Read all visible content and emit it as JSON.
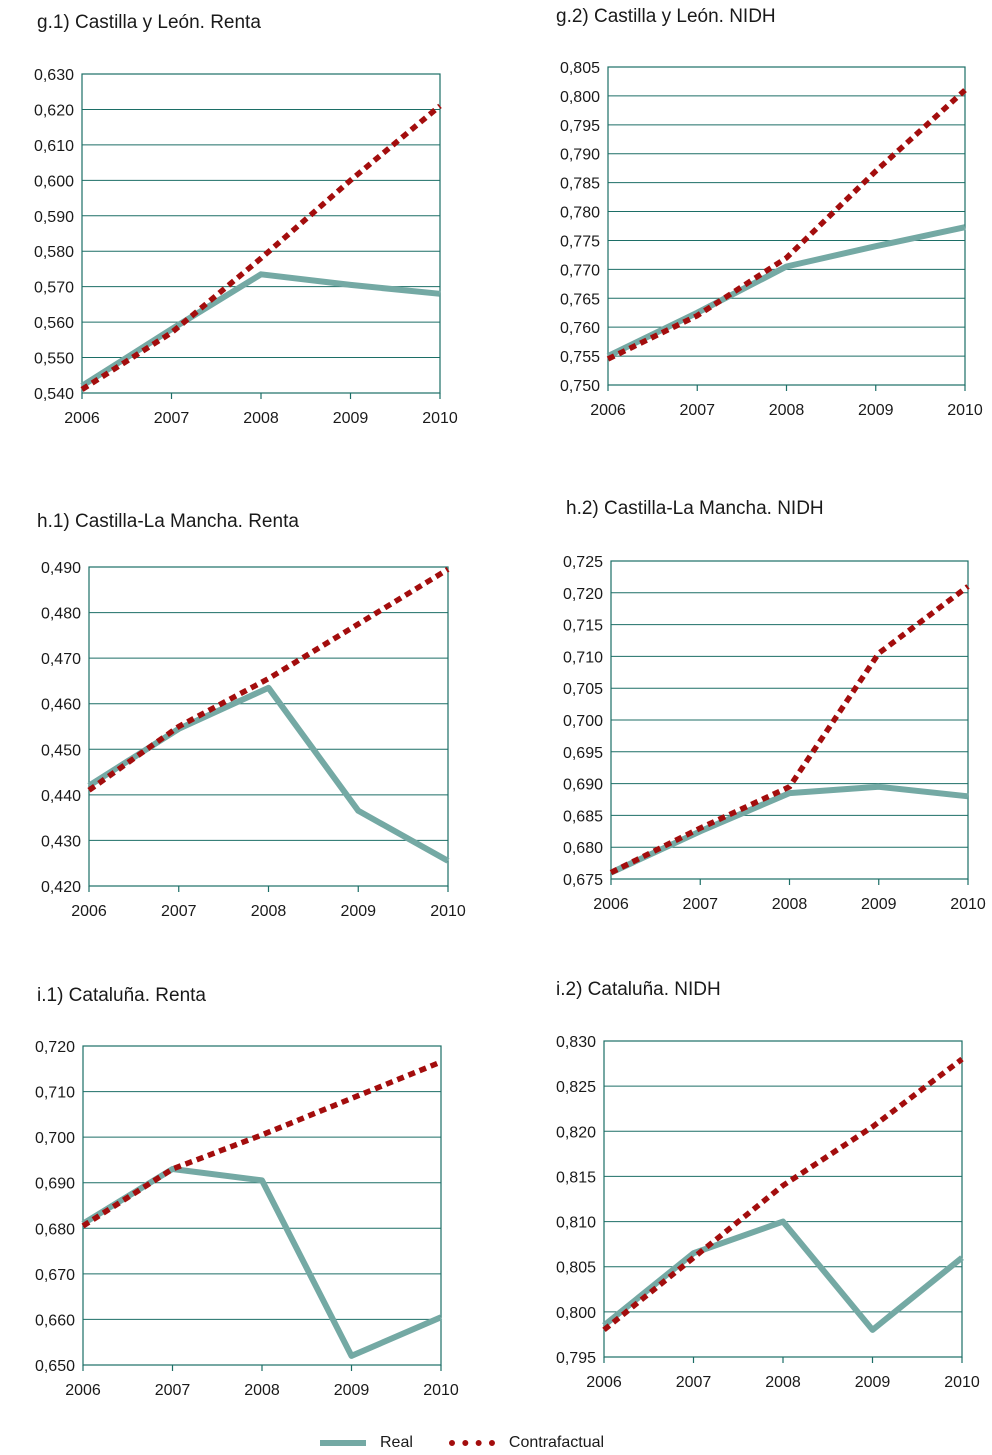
{
  "colors": {
    "real": "#74a9a4",
    "contrafactual": "#a30d0d",
    "grid": "#1c6e66",
    "axis": "#1c6e66"
  },
  "legend": {
    "real": "Real",
    "contrafactual": "Contrafactual"
  },
  "chart_data": [
    {
      "type": "line",
      "title": "g.1) Castilla y León. Renta",
      "categories": [
        "2006",
        "2007",
        "2008",
        "2009",
        "2010"
      ],
      "ylim": [
        0.54,
        0.63
      ],
      "yticks": [
        "0,540",
        "0,550",
        "0,560",
        "0,570",
        "0,580",
        "0,590",
        "0,600",
        "0,610",
        "0,620",
        "0,630"
      ],
      "grid": true,
      "series": [
        {
          "name": "Real",
          "values": [
            0.542,
            0.558,
            0.5735,
            0.5705,
            0.568
          ]
        },
        {
          "name": "Contrafactual",
          "values": [
            0.541,
            0.557,
            0.578,
            0.6,
            0.621
          ]
        }
      ]
    },
    {
      "type": "line",
      "title": "g.2) Castilla y León. NIDH",
      "categories": [
        "2006",
        "2007",
        "2008",
        "2009",
        "2010"
      ],
      "ylim": [
        0.75,
        0.805
      ],
      "yticks": [
        "0,750",
        "0,755",
        "0,760",
        "0,765",
        "0,770",
        "0,775",
        "0,780",
        "0,785",
        "0,790",
        "0,795",
        "0,800",
        "0,805"
      ],
      "grid": true,
      "series": [
        {
          "name": "Real",
          "values": [
            0.755,
            0.7625,
            0.7705,
            0.774,
            0.7773
          ]
        },
        {
          "name": "Contrafactual",
          "values": [
            0.7545,
            0.762,
            0.772,
            0.787,
            0.801
          ]
        }
      ]
    },
    {
      "type": "line",
      "title": "h.1) Castilla-La Mancha. Renta",
      "categories": [
        "2006",
        "2007",
        "2008",
        "2009",
        "2010"
      ],
      "ylim": [
        0.42,
        0.49
      ],
      "yticks": [
        "0,420",
        "0,430",
        "0,440",
        "0,450",
        "0,460",
        "0,470",
        "0,480",
        "0,490"
      ],
      "grid": true,
      "series": [
        {
          "name": "Real",
          "values": [
            0.442,
            0.4545,
            0.4635,
            0.4365,
            0.4255
          ]
        },
        {
          "name": "Contrafactual",
          "values": [
            0.441,
            0.455,
            0.4655,
            0.4775,
            0.4895
          ]
        }
      ]
    },
    {
      "type": "line",
      "title": "h.2) Castilla-La Mancha. NIDH",
      "categories": [
        "2006",
        "2007",
        "2008",
        "2009",
        "2010"
      ],
      "ylim": [
        0.675,
        0.725
      ],
      "yticks": [
        "0,675",
        "0,680",
        "0,685",
        "0,690",
        "0,695",
        "0,700",
        "0,705",
        "0,710",
        "0,715",
        "0,720",
        "0,725"
      ],
      "grid": true,
      "series": [
        {
          "name": "Real",
          "values": [
            0.676,
            0.6825,
            0.6885,
            0.6895,
            0.688
          ]
        },
        {
          "name": "Contrafactual",
          "values": [
            0.676,
            0.683,
            0.6895,
            0.7105,
            0.721
          ]
        }
      ]
    },
    {
      "type": "line",
      "title": "i.1) Cataluña. Renta",
      "categories": [
        "2006",
        "2007",
        "2008",
        "2009",
        "2010"
      ],
      "ylim": [
        0.65,
        0.72
      ],
      "yticks": [
        "0,650",
        "0,660",
        "0,670",
        "0,680",
        "0,690",
        "0,700",
        "0,710",
        "0,720"
      ],
      "grid": true,
      "series": [
        {
          "name": "Real",
          "values": [
            0.681,
            0.693,
            0.6905,
            0.652,
            0.6605
          ]
        },
        {
          "name": "Contrafactual",
          "values": [
            0.6805,
            0.693,
            0.7005,
            0.7085,
            0.7165
          ]
        }
      ]
    },
    {
      "type": "line",
      "title": "i.2) Cataluña. NIDH",
      "categories": [
        "2006",
        "2007",
        "2008",
        "2009",
        "2010"
      ],
      "ylim": [
        0.795,
        0.83
      ],
      "yticks": [
        "0,795",
        "0,800",
        "0,805",
        "0,810",
        "0,815",
        "0,820",
        "0,825",
        "0,830"
      ],
      "grid": true,
      "series": [
        {
          "name": "Real",
          "values": [
            0.7985,
            0.8065,
            0.81,
            0.798,
            0.806
          ]
        },
        {
          "name": "Contrafactual",
          "values": [
            0.798,
            0.806,
            0.814,
            0.8205,
            0.828
          ]
        }
      ]
    }
  ]
}
